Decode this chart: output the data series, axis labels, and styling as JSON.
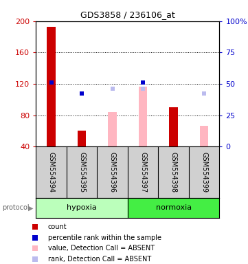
{
  "title": "GDS3858 / 236106_at",
  "samples": [
    "GSM554394",
    "GSM554395",
    "GSM554396",
    "GSM554397",
    "GSM554398",
    "GSM554399"
  ],
  "ymin": 40,
  "ymax": 200,
  "yticks_left": [
    40,
    80,
    120,
    160,
    200
  ],
  "yticks_right": [
    0,
    25,
    50,
    75,
    100
  ],
  "yright_labels": [
    "0",
    "25",
    "50",
    "75",
    "100%"
  ],
  "red_bars": [
    193,
    60,
    null,
    null,
    90,
    null
  ],
  "blue_squares": [
    122,
    108,
    null,
    122,
    null,
    null
  ],
  "pink_bars": [
    null,
    null,
    84,
    116,
    null,
    66
  ],
  "light_blue_squares": [
    null,
    null,
    114,
    114,
    null,
    108
  ],
  "colors": {
    "red": "#CC0000",
    "blue": "#0000CC",
    "pink": "#FFB6C1",
    "light_blue": "#BBBBEE",
    "bg_sample": "#D0D0D0",
    "bg_protocol_hypoxia": "#BBFFBB",
    "bg_protocol_normoxia": "#44EE44",
    "plot_bg": "#FFFFFF"
  },
  "legend_items": [
    {
      "label": "count",
      "color": "#CC0000"
    },
    {
      "label": "percentile rank within the sample",
      "color": "#0000CC"
    },
    {
      "label": "value, Detection Call = ABSENT",
      "color": "#FFB6C1"
    },
    {
      "label": "rank, Detection Call = ABSENT",
      "color": "#BBBBEE"
    }
  ],
  "bar_width": 0.28,
  "square_size": 5
}
